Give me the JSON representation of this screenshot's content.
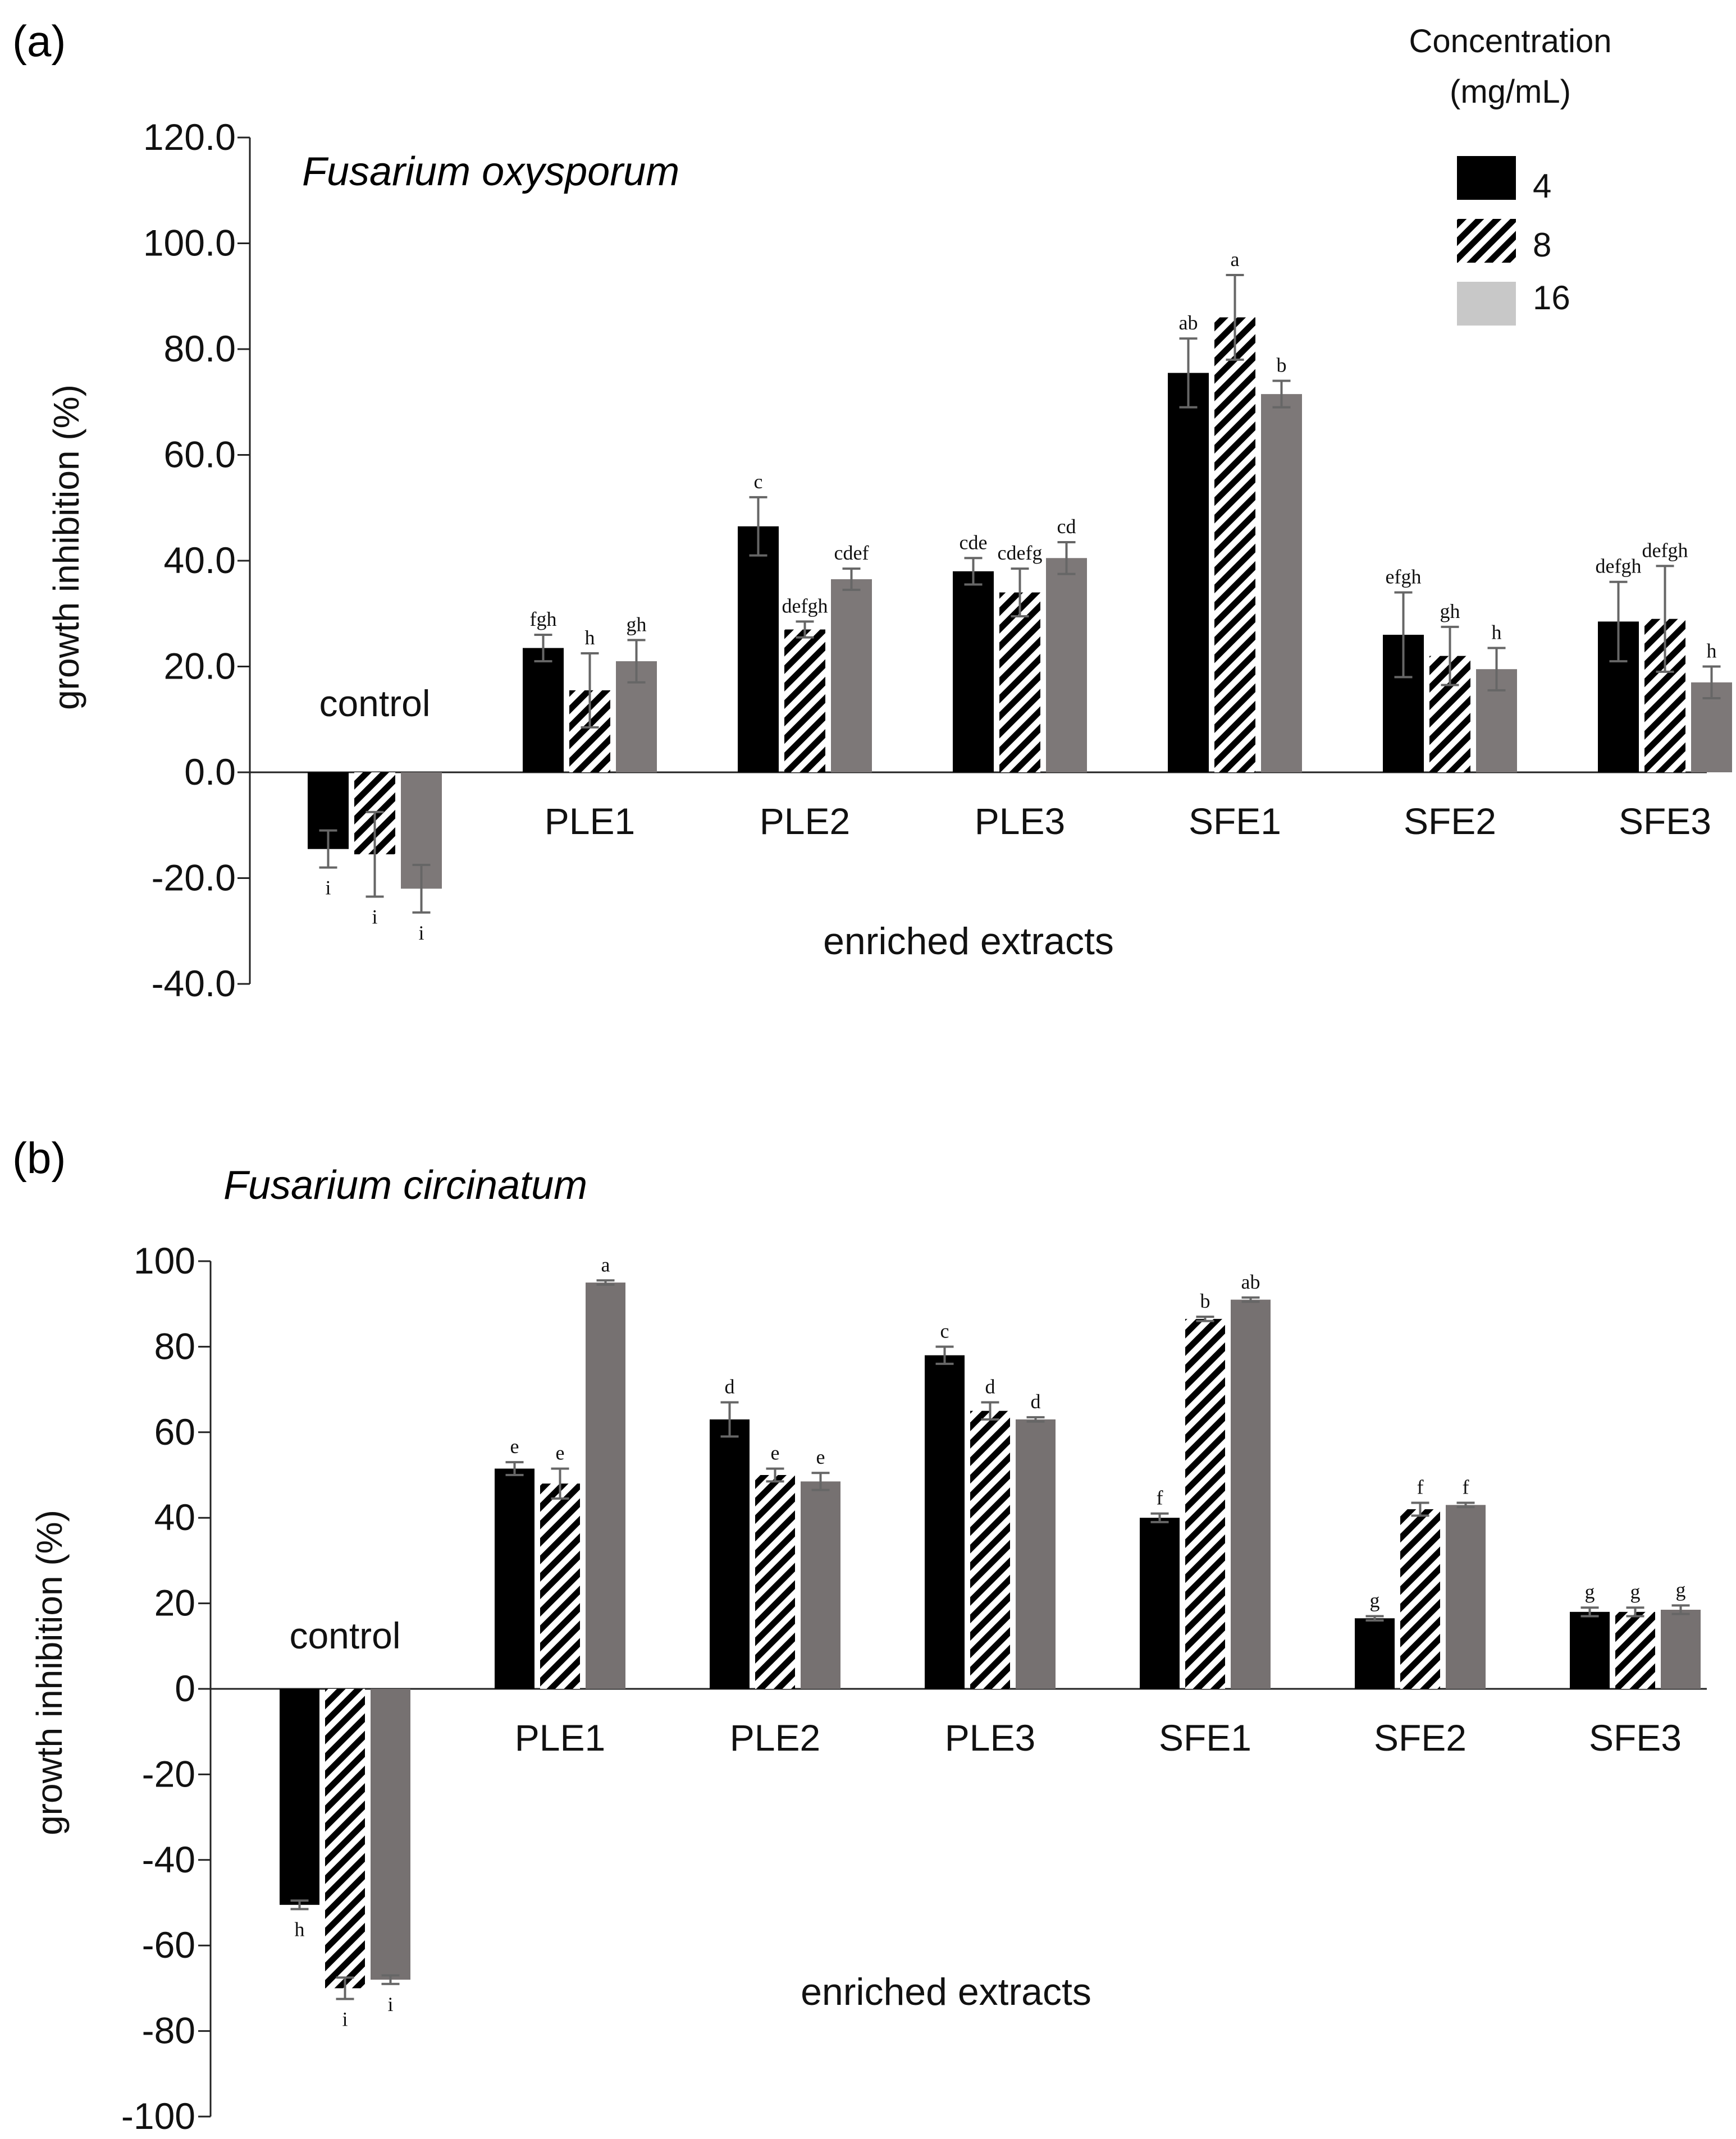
{
  "legend": {
    "title_line1": "Concentration",
    "title_line2": "(mg/mL)",
    "items": [
      {
        "label": "4",
        "style": "solid-black"
      },
      {
        "label": "8",
        "style": "hatched"
      },
      {
        "label": "16",
        "style": "grey"
      }
    ]
  },
  "colors": {
    "black": "#000000",
    "grey_a": "#7d7878",
    "grey_b": "#767171",
    "legend_grey": "#c8c8c8",
    "errorbar": "#666666"
  },
  "chart_data": [
    {
      "type": "bar",
      "panel_label": "(a)",
      "title": "Fusarium oxysporum",
      "xlabel": "enriched  extracts",
      "ylabel": "growth inhibition (%)",
      "ylim": [
        -40,
        120
      ],
      "yticks": [
        "-40.0",
        "-20.0",
        "0.0",
        "20.0",
        "40.0",
        "60.0",
        "80.0",
        "100.0",
        "120.0"
      ],
      "categories": [
        "control",
        "PLE1",
        "PLE2",
        "PLE3",
        "SFE1",
        "SFE2",
        "SFE3"
      ],
      "series": [
        {
          "name": "4",
          "values": [
            -14.5,
            23.5,
            46.5,
            38.0,
            75.5,
            26.0,
            28.5
          ],
          "errors": [
            3.5,
            2.5,
            5.5,
            2.5,
            6.5,
            8.0,
            7.5
          ],
          "letters": [
            "i",
            "fgh",
            "c",
            "cde",
            "ab",
            "efgh",
            "defgh"
          ]
        },
        {
          "name": "8",
          "values": [
            -15.5,
            15.5,
            27.0,
            34.0,
            86.0,
            22.0,
            29.0
          ],
          "errors": [
            8.0,
            7.0,
            1.5,
            4.5,
            8.0,
            5.5,
            10.0
          ],
          "letters": [
            "i",
            "h",
            "defgh",
            "cdefg",
            "a",
            "gh",
            "defgh"
          ]
        },
        {
          "name": "16",
          "values": [
            -22.0,
            21.0,
            36.5,
            40.5,
            71.5,
            19.5,
            17.0
          ],
          "errors": [
            4.5,
            4.0,
            2.0,
            3.0,
            2.5,
            4.0,
            3.0
          ],
          "letters": [
            "i",
            "gh",
            "cdef",
            "cd",
            "b",
            "h",
            "h"
          ]
        }
      ]
    },
    {
      "type": "bar",
      "panel_label": "(b)",
      "title": "Fusarium circinatum",
      "xlabel": "enriched  extracts",
      "ylabel": "growth inhibition (%)",
      "ylim": [
        -100,
        100
      ],
      "yticks": [
        "-100",
        "-80",
        "-60",
        "-40",
        "-20",
        "0",
        "20",
        "40",
        "60",
        "80",
        "100"
      ],
      "categories": [
        "control",
        "PLE1",
        "PLE2",
        "PLE3",
        "SFE1",
        "SFE2",
        "SFE3"
      ],
      "series": [
        {
          "name": "4",
          "values": [
            -50.5,
            51.5,
            63.0,
            78.0,
            40.0,
            16.5,
            18.0
          ],
          "errors": [
            1.0,
            1.5,
            4.0,
            2.0,
            1.0,
            0.5,
            1.0
          ],
          "letters": [
            "h",
            "e",
            "d",
            "c",
            "f",
            "g",
            "g"
          ]
        },
        {
          "name": "8",
          "values": [
            -70.0,
            48.0,
            50.0,
            65.0,
            86.5,
            42.0,
            18.0
          ],
          "errors": [
            2.5,
            3.5,
            1.5,
            2.0,
            0.5,
            1.5,
            1.0
          ],
          "letters": [
            "i",
            "e",
            "e",
            "d",
            "b",
            "f",
            "g"
          ]
        },
        {
          "name": "16",
          "values": [
            -68.0,
            95.0,
            48.5,
            63.0,
            91.0,
            43.0,
            18.5
          ],
          "errors": [
            1.0,
            0.5,
            2.0,
            0.5,
            0.5,
            0.5,
            1.0
          ],
          "letters": [
            "i",
            "a",
            "e",
            "d",
            "ab",
            "f",
            "g"
          ]
        }
      ]
    }
  ]
}
